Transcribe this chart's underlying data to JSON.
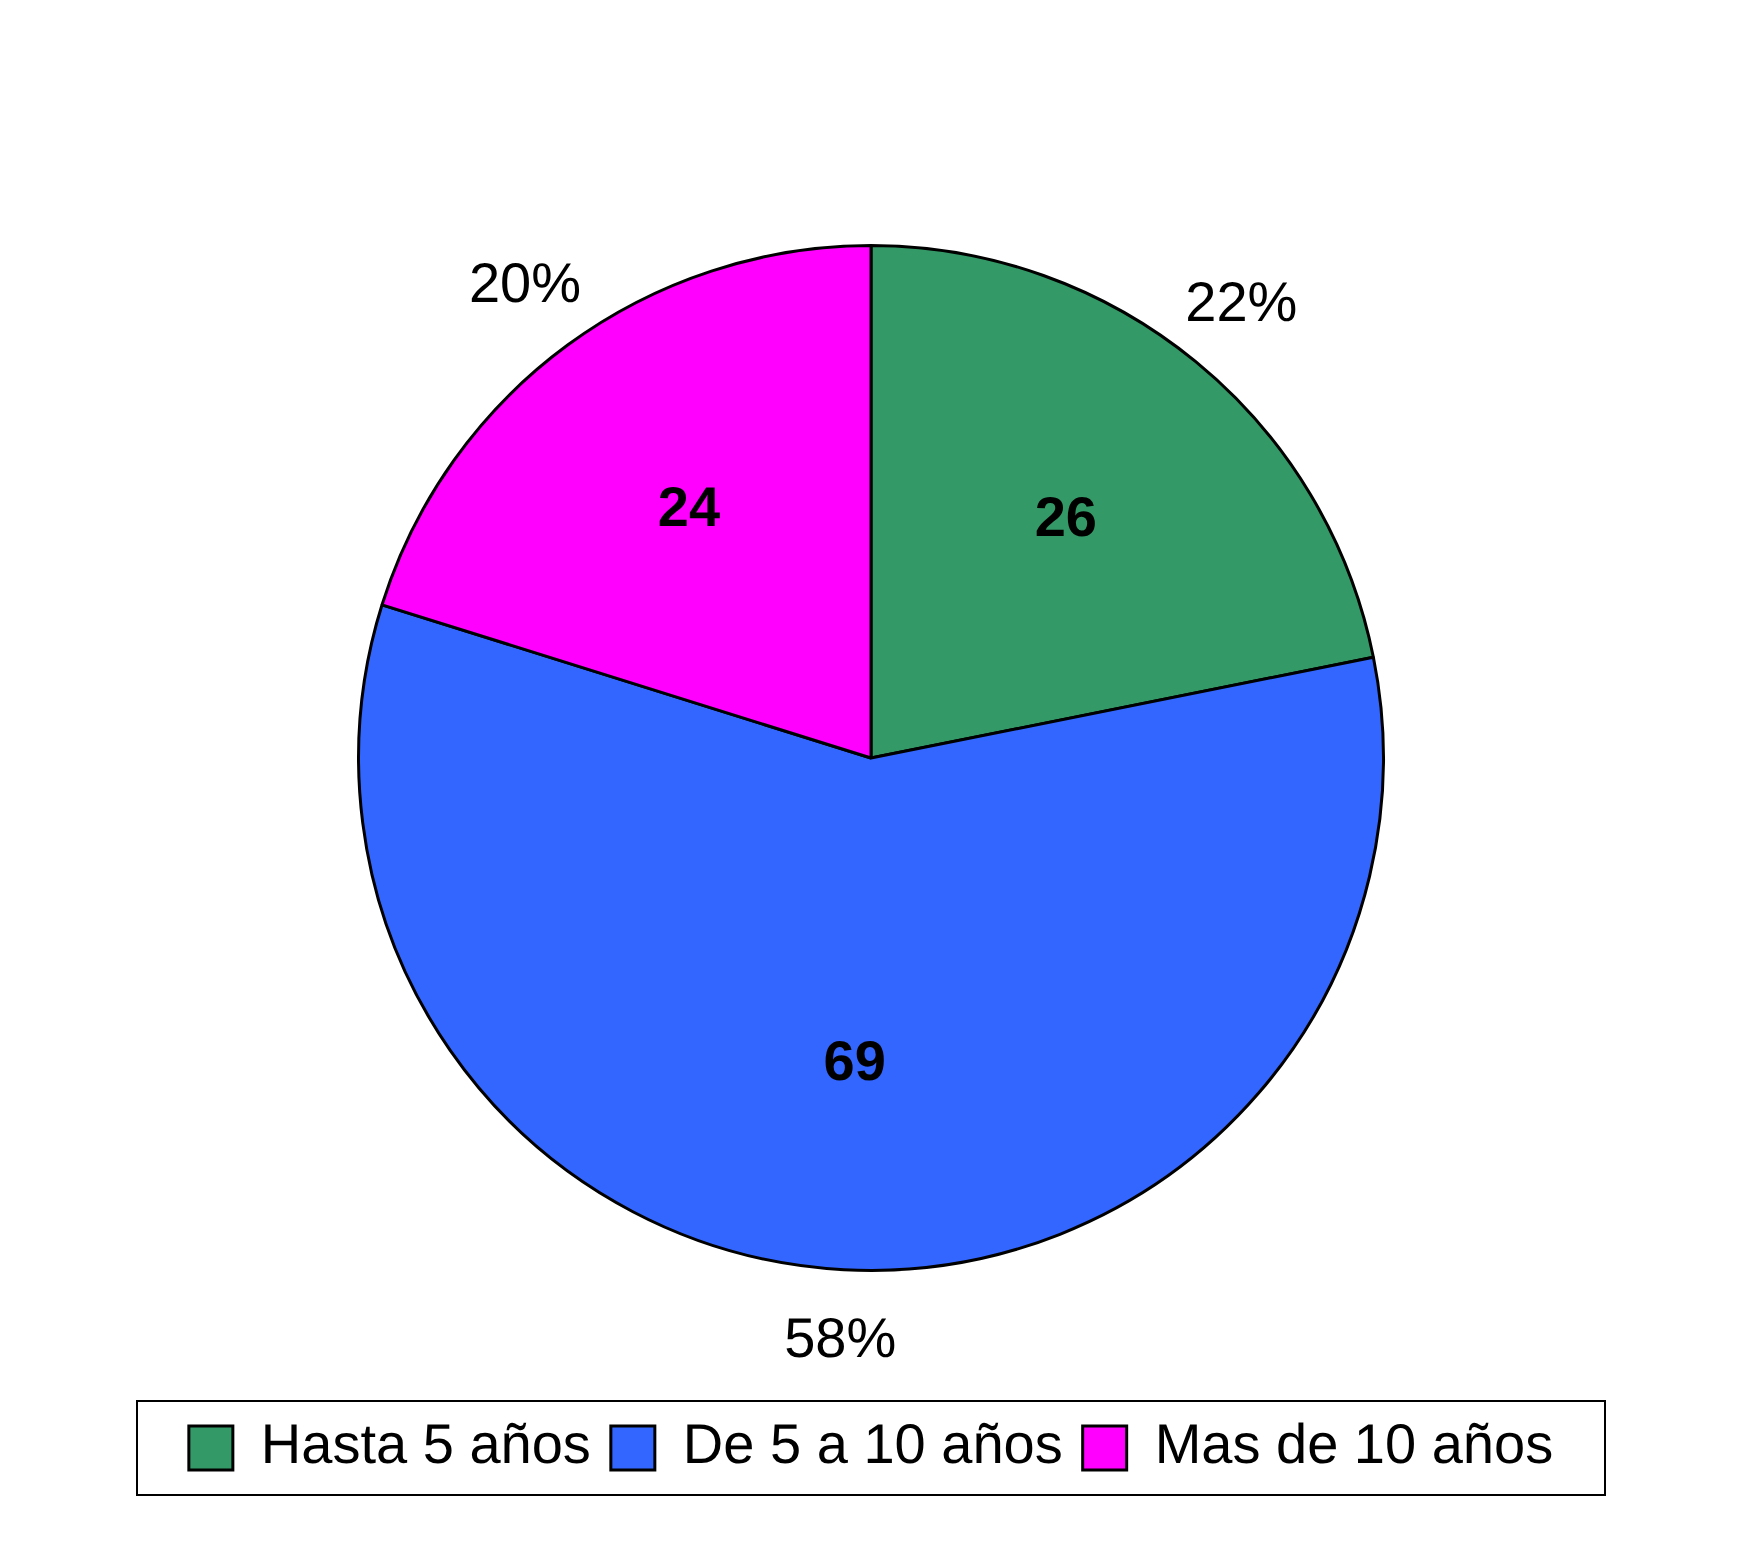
{
  "chart_data": {
    "type": "pie",
    "categories": [
      "Hasta 5 años",
      "De 5 a 10 años",
      "Mas de 10 años"
    ],
    "values": [
      26,
      69,
      24
    ],
    "colors": [
      "#339966",
      "#3366ff",
      "#ff00ff"
    ],
    "data_labels": true,
    "legend": "bottom",
    "annotations": [
      "22%",
      "58%",
      "20%"
    ]
  }
}
